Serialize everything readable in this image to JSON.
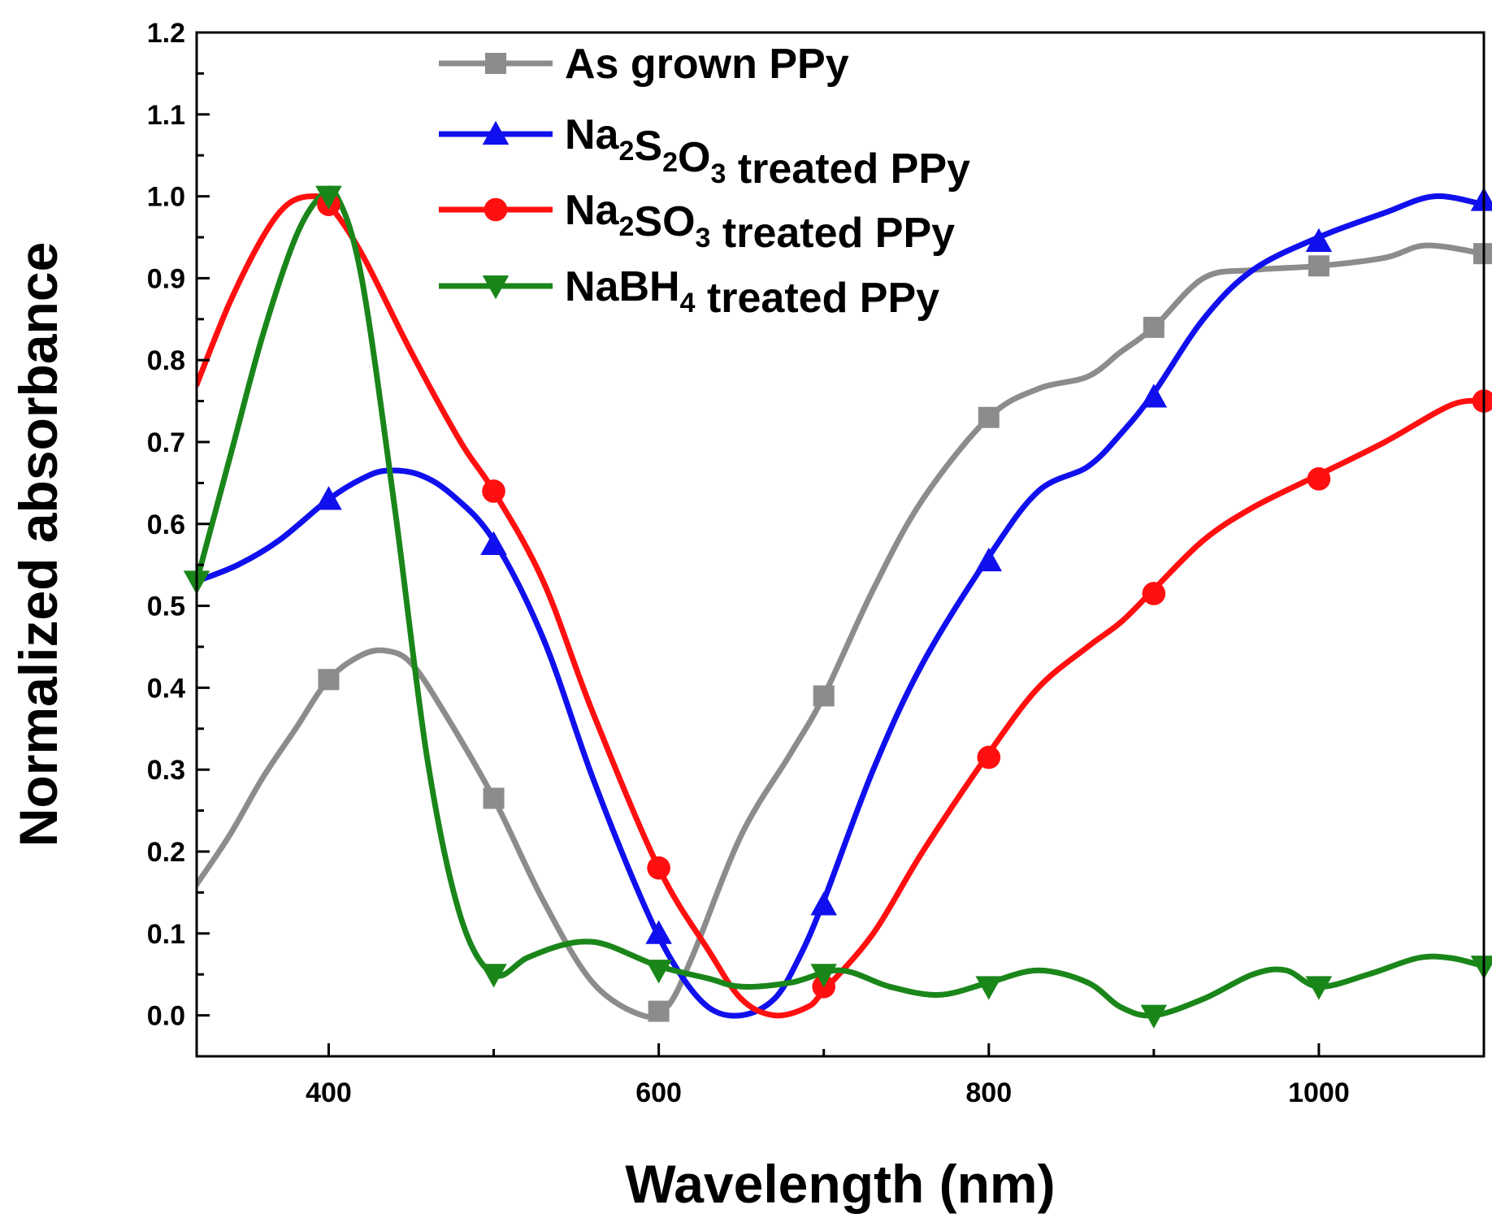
{
  "chart_data": {
    "type": "line",
    "title": "",
    "xlabel": "Wavelength (nm)",
    "ylabel": "Normalized absorbance",
    "xlim": [
      320,
      1100
    ],
    "ylim": [
      -0.05,
      1.2
    ],
    "xticks": [
      400,
      600,
      800,
      1000
    ],
    "yticks": [
      0.0,
      0.1,
      0.2,
      0.3,
      0.4,
      0.5,
      0.6,
      0.7,
      0.8,
      0.9,
      1.0,
      1.1,
      1.2
    ],
    "grid": false,
    "legend_position": "top-center",
    "series": [
      {
        "name": "As grown PPy",
        "label_parts": [
          [
            "As grown PPy",
            false
          ]
        ],
        "color": "#8c8c8c",
        "marker": "square",
        "x": [
          320,
          340,
          360,
          380,
          400,
          420,
          435,
          450,
          470,
          500,
          530,
          560,
          590,
          605,
          620,
          650,
          680,
          700,
          730,
          760,
          800,
          830,
          860,
          880,
          900,
          930,
          960,
          1000,
          1040,
          1065,
          1100
        ],
        "y": [
          0.16,
          0.22,
          0.29,
          0.35,
          0.41,
          0.44,
          0.445,
          0.43,
          0.37,
          0.265,
          0.14,
          0.04,
          0.0,
          0.01,
          0.07,
          0.22,
          0.32,
          0.39,
          0.52,
          0.63,
          0.73,
          0.765,
          0.78,
          0.81,
          0.84,
          0.9,
          0.91,
          0.915,
          0.925,
          0.94,
          0.93
        ],
        "marker_x": [
          400,
          500,
          600,
          700,
          800,
          900,
          1000,
          1100
        ],
        "marker_y": [
          0.41,
          0.265,
          0.005,
          0.39,
          0.73,
          0.84,
          0.915,
          0.93
        ]
      },
      {
        "name": "Na2S2O3 treated PPy",
        "label_parts": [
          [
            "Na",
            false
          ],
          [
            "2",
            true
          ],
          [
            "S",
            false
          ],
          [
            "2",
            true
          ],
          [
            "O",
            false
          ],
          [
            "3",
            true
          ],
          [
            " treated PPy",
            false
          ]
        ],
        "color": "#1010ee",
        "marker": "triangle-up",
        "x": [
          320,
          345,
          370,
          400,
          420,
          435,
          455,
          475,
          500,
          530,
          560,
          590,
          610,
          630,
          650,
          670,
          685,
          700,
          730,
          760,
          800,
          830,
          860,
          880,
          900,
          930,
          960,
          1000,
          1040,
          1070,
          1100
        ],
        "y": [
          0.53,
          0.55,
          0.58,
          0.63,
          0.655,
          0.665,
          0.66,
          0.635,
          0.58,
          0.46,
          0.29,
          0.14,
          0.06,
          0.01,
          0.0,
          0.02,
          0.07,
          0.14,
          0.3,
          0.43,
          0.56,
          0.64,
          0.67,
          0.71,
          0.76,
          0.85,
          0.91,
          0.95,
          0.98,
          1.0,
          0.99
        ],
        "marker_x": [
          400,
          500,
          600,
          700,
          800,
          900,
          1000,
          1100
        ],
        "marker_y": [
          0.63,
          0.575,
          0.1,
          0.135,
          0.555,
          0.755,
          0.945,
          0.995
        ]
      },
      {
        "name": "Na2SO3 treated PPy",
        "label_parts": [
          [
            "Na",
            false
          ],
          [
            "2",
            true
          ],
          [
            "SO",
            false
          ],
          [
            "3",
            true
          ],
          [
            " treated PPy",
            false
          ]
        ],
        "color": "#ff0f0f",
        "marker": "circle",
        "x": [
          320,
          340,
          360,
          375,
          390,
          400,
          420,
          450,
          480,
          500,
          530,
          560,
          600,
          630,
          650,
          670,
          690,
          700,
          730,
          760,
          800,
          830,
          860,
          880,
          900,
          930,
          960,
          1000,
          1040,
          1080,
          1100
        ],
        "y": [
          0.77,
          0.87,
          0.95,
          0.99,
          1.0,
          0.99,
          0.93,
          0.81,
          0.7,
          0.64,
          0.53,
          0.37,
          0.18,
          0.08,
          0.02,
          0.0,
          0.01,
          0.03,
          0.1,
          0.2,
          0.32,
          0.4,
          0.45,
          0.48,
          0.52,
          0.58,
          0.62,
          0.66,
          0.7,
          0.745,
          0.75
        ],
        "marker_x": [
          400,
          500,
          600,
          700,
          800,
          900,
          1000,
          1100
        ],
        "marker_y": [
          0.99,
          0.64,
          0.18,
          0.035,
          0.315,
          0.515,
          0.655,
          0.75
        ]
      },
      {
        "name": "NaBH4 treated PPy",
        "label_parts": [
          [
            "NaBH",
            false
          ],
          [
            "4",
            true
          ],
          [
            " treated PPy",
            false
          ]
        ],
        "color": "#1a861a",
        "marker": "triangle-down",
        "x": [
          320,
          340,
          360,
          380,
          395,
          405,
          420,
          440,
          460,
          480,
          500,
          520,
          540,
          555,
          570,
          600,
          630,
          650,
          680,
          710,
          740,
          770,
          800,
          830,
          860,
          880,
          900,
          930,
          960,
          980,
          1000,
          1030,
          1060,
          1080,
          1100
        ],
        "y": [
          0.53,
          0.68,
          0.83,
          0.95,
          1.0,
          1.0,
          0.9,
          0.62,
          0.31,
          0.12,
          0.05,
          0.07,
          0.085,
          0.09,
          0.085,
          0.06,
          0.045,
          0.035,
          0.04,
          0.055,
          0.035,
          0.025,
          0.04,
          0.055,
          0.04,
          0.01,
          0.0,
          0.02,
          0.05,
          0.055,
          0.035,
          0.05,
          0.07,
          0.07,
          0.06
        ],
        "marker_x": [
          320,
          400,
          500,
          600,
          700,
          800,
          900,
          1000,
          1100
        ],
        "marker_y": [
          0.53,
          1.0,
          0.05,
          0.055,
          0.05,
          0.035,
          0.0,
          0.035,
          0.06
        ]
      }
    ]
  }
}
